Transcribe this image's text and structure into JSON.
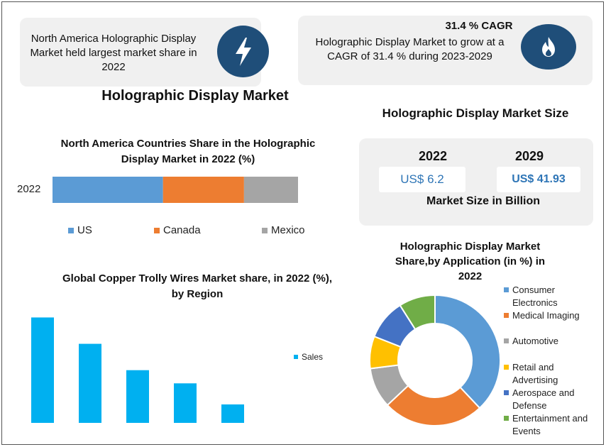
{
  "top_left_card": {
    "text": "North America Holographic Display Market held largest market share in 2022",
    "icon": "lightning-bolt-icon"
  },
  "top_right_card": {
    "heading": "31.4 % CAGR",
    "text": "Holographic Display Market to grow at a CAGR of 31.4 % during 2023-2029",
    "icon": "flame-icon"
  },
  "main_title": "Holographic Display Market",
  "market_size": {
    "title": "Holographic Display Market Size",
    "year_a": "2022",
    "value_a": "US$ 6.2",
    "year_b": "2029",
    "value_b": "US$ 41.93",
    "caption": "Market Size in Billion"
  },
  "colors": {
    "blue": "#5b9bd5",
    "orange": "#ed7d31",
    "gray": "#a5a5a5",
    "yellow": "#ffc000",
    "darkblue": "#4472c4",
    "green": "#70ad47",
    "cyan": "#00b0f0",
    "icon_bg": "#1f4e79"
  },
  "chart_data": [
    {
      "type": "bar",
      "orientation": "horizontal-stacked",
      "title": "North America Countries Share in the Holographic Display Market in 2022 (%)",
      "categories": [
        "2022"
      ],
      "series": [
        {
          "name": "US",
          "values": [
            45
          ]
        },
        {
          "name": "Canada",
          "values": [
            33
          ]
        },
        {
          "name": "Mexico",
          "values": [
            22
          ]
        }
      ],
      "legend": "bottom"
    },
    {
      "type": "bar",
      "title": "Global Copper Trolly Wires Market share, in 2022 (%), by Region",
      "categories": [
        "",
        "",
        "",
        "",
        ""
      ],
      "series": [
        {
          "name": "Sales",
          "values": [
            40,
            30,
            20,
            15,
            7
          ]
        }
      ],
      "ylim": [
        0,
        42
      ],
      "legend": "right",
      "grid": false
    },
    {
      "type": "pie",
      "variant": "donut",
      "title": "Holographic Display Market Share,by Application (in %) in 2022",
      "labels": [
        "Consumer Electronics",
        "Medical Imaging",
        "Automotive",
        "Retail and Advertising",
        "Aerospace and Defense",
        "Entertainment and Events"
      ],
      "values": [
        38,
        25,
        10,
        8,
        10,
        9
      ],
      "legend": "right"
    }
  ]
}
